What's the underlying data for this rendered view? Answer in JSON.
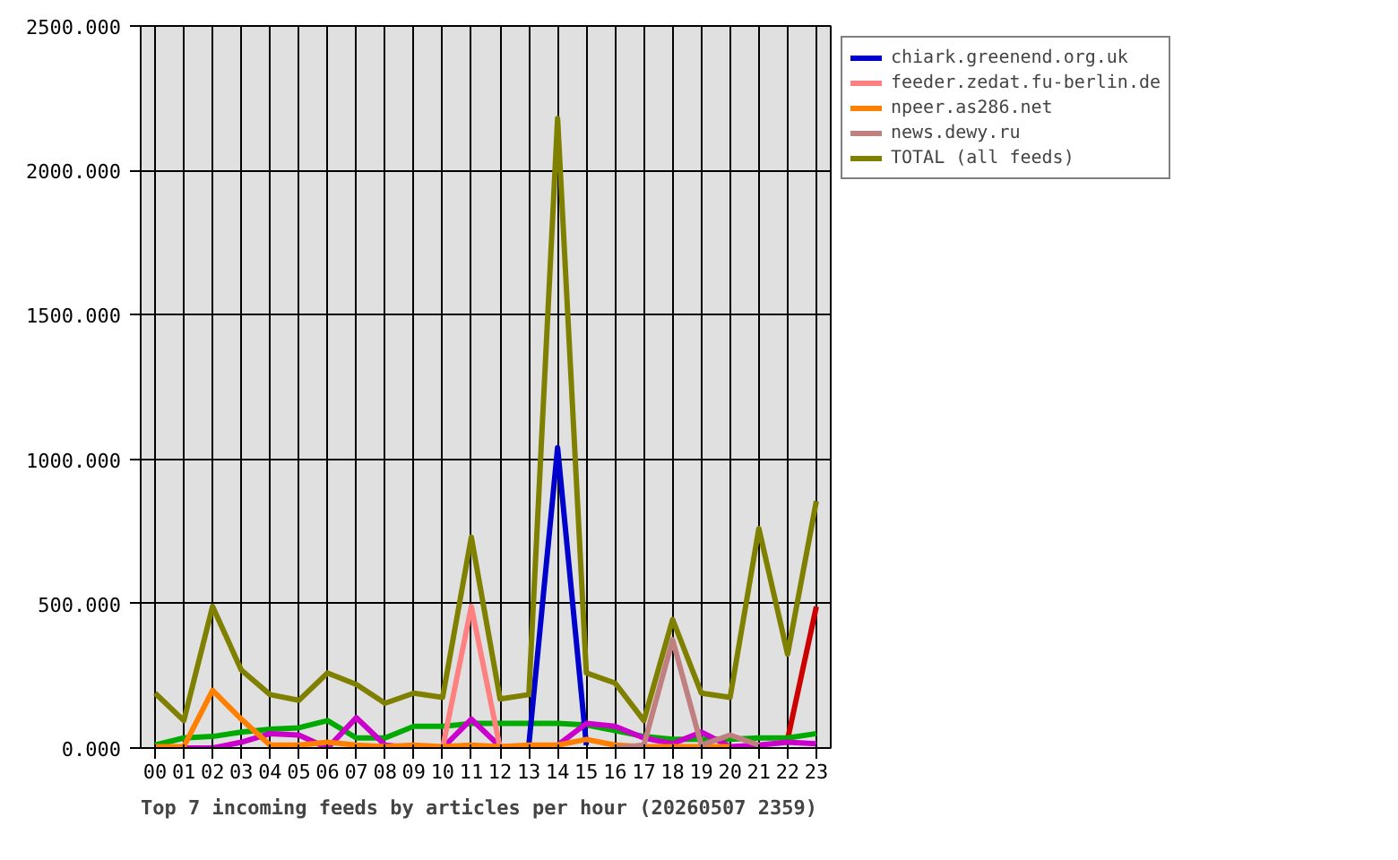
{
  "chart_data": {
    "type": "line",
    "title": "Top 7 incoming feeds by articles per hour (20260507 2359)",
    "categories": [
      "00",
      "01",
      "02",
      "03",
      "04",
      "05",
      "06",
      "07",
      "08",
      "09",
      "10",
      "11",
      "12",
      "13",
      "14",
      "15",
      "16",
      "17",
      "18",
      "19",
      "20",
      "21",
      "22",
      "23"
    ],
    "ylim": [
      0,
      2500
    ],
    "yticks": [
      {
        "value": 0,
        "label": "0.000"
      },
      {
        "value": 500,
        "label": "500.000"
      },
      {
        "value": 1000,
        "label": "1000.000"
      },
      {
        "value": 1500,
        "label": "1500.000"
      },
      {
        "value": 2000,
        "label": "2000.000"
      },
      {
        "value": 2500,
        "label": "2500.000"
      }
    ],
    "grid": true,
    "legend": "right",
    "series": [
      {
        "color": "#cc0000",
        "values": [
          null,
          null,
          null,
          null,
          null,
          null,
          null,
          null,
          null,
          null,
          null,
          null,
          null,
          null,
          null,
          null,
          null,
          null,
          null,
          null,
          null,
          null,
          30,
          490
        ]
      },
      {
        "color": "#00aa00",
        "values": [
          10,
          35,
          40,
          55,
          65,
          70,
          95,
          35,
          35,
          75,
          75,
          85,
          85,
          85,
          85,
          80,
          60,
          40,
          30,
          30,
          30,
          35,
          35,
          50
        ]
      },
      {
        "name": "chiark.greenend.org.uk",
        "color": "#0000cc",
        "values": [
          null,
          null,
          null,
          null,
          null,
          null,
          null,
          null,
          null,
          null,
          null,
          null,
          null,
          10,
          1040,
          10,
          null,
          null,
          null,
          null,
          null,
          null,
          null,
          null
        ]
      },
      {
        "color": "#cc00cc",
        "values": [
          0,
          0,
          0,
          20,
          50,
          45,
          0,
          105,
          10,
          0,
          0,
          100,
          5,
          0,
          10,
          85,
          75,
          35,
          15,
          55,
          5,
          10,
          20,
          15
        ]
      },
      {
        "name": "feeder.zedat.fu-berlin.de",
        "color": "#ff8080",
        "values": [
          null,
          null,
          null,
          null,
          null,
          null,
          null,
          null,
          null,
          null,
          0,
          490,
          0,
          null,
          null,
          null,
          null,
          null,
          null,
          null,
          null,
          null,
          null,
          null
        ]
      },
      {
        "name": "npeer.as286.net",
        "color": "#ff8000",
        "values": [
          5,
          5,
          200,
          100,
          10,
          10,
          20,
          10,
          5,
          10,
          5,
          10,
          5,
          10,
          10,
          30,
          10,
          5,
          5,
          5,
          5,
          null,
          null,
          null
        ]
      },
      {
        "name": "news.dewy.ru",
        "color": "#c08080",
        "values": [
          null,
          null,
          null,
          null,
          null,
          null,
          null,
          null,
          null,
          null,
          null,
          null,
          null,
          null,
          null,
          null,
          0,
          10,
          375,
          10,
          45,
          10,
          null,
          null
        ]
      },
      {
        "name": "TOTAL (all feeds)",
        "color": "#808000",
        "values": [
          190,
          95,
          490,
          270,
          185,
          165,
          260,
          220,
          155,
          190,
          175,
          730,
          170,
          185,
          2180,
          260,
          225,
          95,
          445,
          190,
          175,
          760,
          325,
          855
        ]
      }
    ]
  }
}
